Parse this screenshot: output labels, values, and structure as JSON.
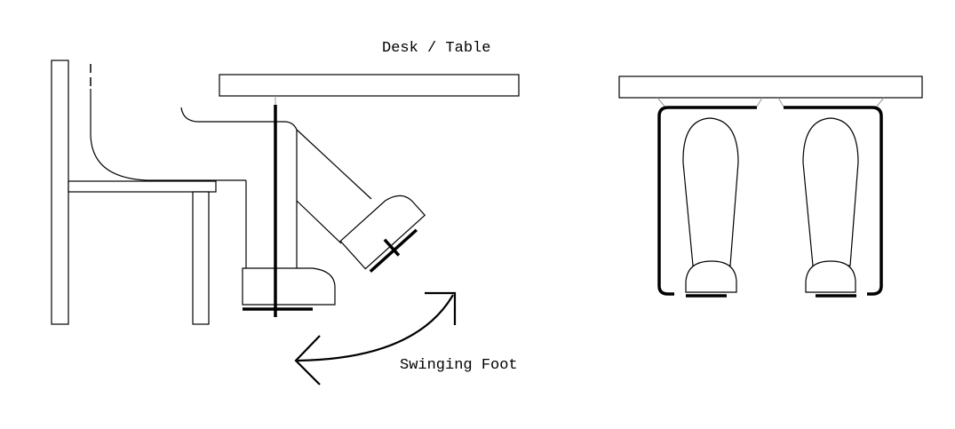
{
  "labels": {
    "desk": "Desk / Table",
    "swing": "Swinging Foot"
  },
  "colors": {
    "line": "#000000",
    "background": "#ffffff"
  }
}
